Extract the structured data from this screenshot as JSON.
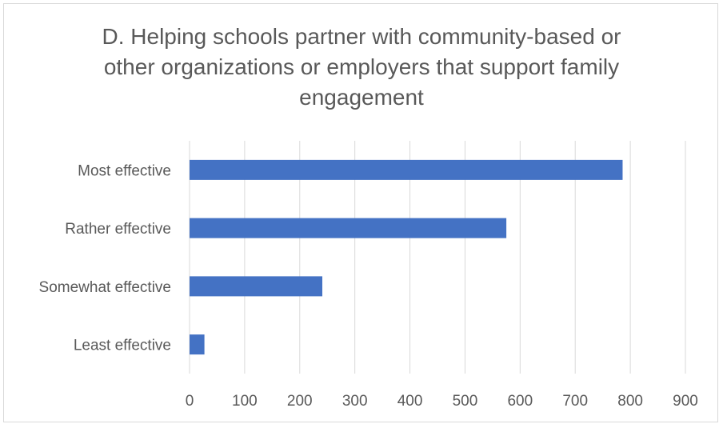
{
  "chart_data": {
    "type": "bar",
    "orientation": "horizontal",
    "title": "D. Helping schools partner with community-based or other organizations or employers that support family engagement",
    "title_lines": [
      "D. Helping schools partner with community-based or",
      "other organizations or employers that support family",
      "engagement"
    ],
    "categories": [
      "Most effective",
      "Rather effective",
      "Somewhat effective",
      "Least effective"
    ],
    "values": [
      786,
      575,
      241,
      27
    ],
    "xlabel": "",
    "ylabel": "",
    "xlim": [
      0,
      900
    ],
    "xticks": [
      0,
      100,
      200,
      300,
      400,
      500,
      600,
      700,
      800,
      900
    ],
    "grid": true,
    "legend": "none",
    "bar_color": "#4472c4",
    "grid_color": "#d9d9d9",
    "text_color": "#595959"
  }
}
